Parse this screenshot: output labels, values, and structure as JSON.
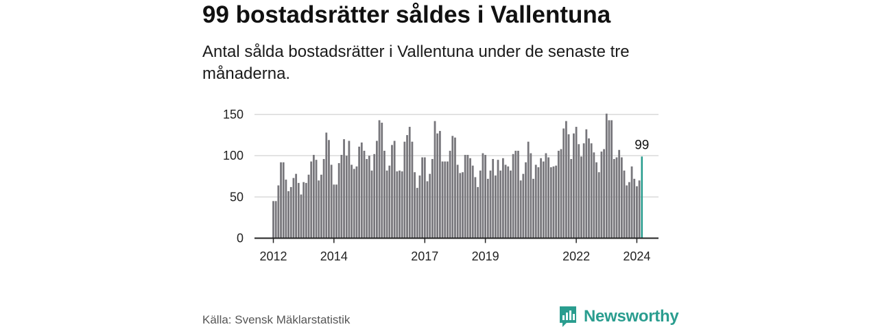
{
  "title": "99 bostadsrätter såldes i Vallentuna",
  "subtitle": "Antal sålda bostadsrätter i Vallentuna under de senaste tre månaderna.",
  "source": "Källa: Svensk Mäklarstatistik",
  "brand": {
    "name": "Newsworthy",
    "icon": "newsworthy-logo-icon"
  },
  "colors": {
    "bar": "#77767b",
    "highlight": "#2a9d8f",
    "grid": "#d9d9d9",
    "axis": "#222222",
    "brand": "#2a9d8f"
  },
  "chart_data": {
    "type": "bar",
    "title": "99 bostadsrätter såldes i Vallentuna",
    "xlabel": "",
    "ylabel": "",
    "ylim": [
      0,
      150
    ],
    "yticks": [
      0,
      50,
      100,
      150
    ],
    "xtick_labels": [
      "2012",
      "2014",
      "2017",
      "2019",
      "2022",
      "2024"
    ],
    "start": "2012-01",
    "interval": "month",
    "highlight_label": "99",
    "grid": true,
    "values": [
      45,
      45,
      64,
      92,
      92,
      71,
      57,
      62,
      73,
      78,
      67,
      53,
      68,
      67,
      77,
      93,
      101,
      95,
      70,
      77,
      96,
      128,
      119,
      89,
      65,
      65,
      91,
      101,
      120,
      100,
      118,
      89,
      84,
      87,
      111,
      116,
      106,
      96,
      100,
      82,
      102,
      118,
      143,
      140,
      106,
      82,
      88,
      113,
      118,
      81,
      82,
      81,
      117,
      125,
      135,
      117,
      80,
      61,
      76,
      98,
      98,
      69,
      78,
      96,
      142,
      127,
      130,
      93,
      93,
      93,
      106,
      124,
      122,
      89,
      79,
      80,
      101,
      101,
      97,
      88,
      74,
      62,
      82,
      103,
      101,
      72,
      82,
      96,
      76,
      95,
      82,
      97,
      89,
      87,
      82,
      102,
      106,
      106,
      70,
      78,
      92,
      117,
      103,
      72,
      89,
      86,
      97,
      93,
      103,
      98,
      86,
      87,
      88,
      106,
      108,
      133,
      142,
      126,
      96,
      127,
      135,
      114,
      99,
      115,
      132,
      121,
      115,
      104,
      92,
      80,
      105,
      108,
      151,
      143,
      143,
      96,
      98,
      107,
      98,
      82,
      64,
      68,
      87,
      72,
      63,
      70,
      99
    ]
  }
}
